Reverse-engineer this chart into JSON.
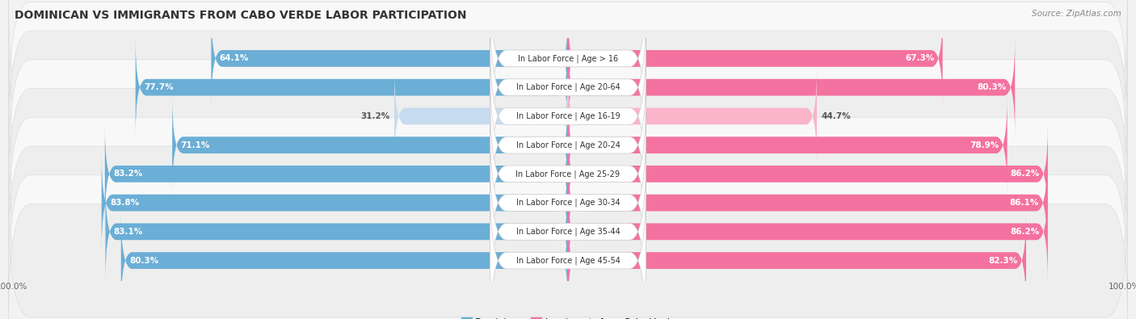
{
  "title": "DOMINICAN VS IMMIGRANTS FROM CABO VERDE LABOR PARTICIPATION",
  "source": "Source: ZipAtlas.com",
  "categories": [
    "In Labor Force | Age > 16",
    "In Labor Force | Age 20-64",
    "In Labor Force | Age 16-19",
    "In Labor Force | Age 20-24",
    "In Labor Force | Age 25-29",
    "In Labor Force | Age 30-34",
    "In Labor Force | Age 35-44",
    "In Labor Force | Age 45-54"
  ],
  "dominican": [
    64.1,
    77.7,
    31.2,
    71.1,
    83.2,
    83.8,
    83.1,
    80.3
  ],
  "cabo_verde": [
    67.3,
    80.3,
    44.7,
    78.9,
    86.2,
    86.1,
    86.2,
    82.3
  ],
  "dominican_color": "#6baed6",
  "cabo_verde_color": "#f472a0",
  "dominican_light_color": "#c6dbef",
  "cabo_verde_light_color": "#fbb4ca",
  "bg_color": "#f2f2f2",
  "row_bg_even": "#f8f8f8",
  "row_bg_odd": "#eeeeee",
  "center_box_color": "#ffffff",
  "max_value": 100.0,
  "legend_dominican": "Dominican",
  "legend_cabo_verde": "Immigrants from Cabo Verde",
  "title_fontsize": 10,
  "label_fontsize": 7.5,
  "cat_fontsize": 7.0,
  "source_fontsize": 7.5
}
